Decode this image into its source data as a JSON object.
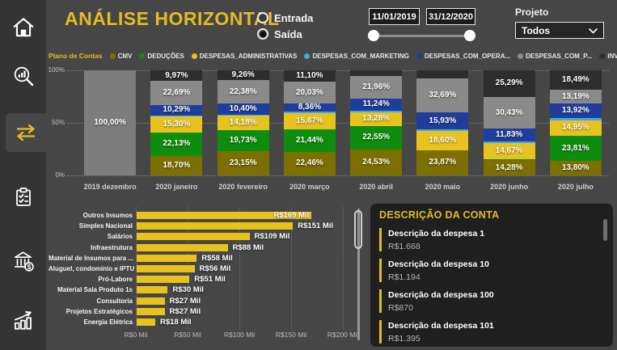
{
  "palette": {
    "cmv": "#7d6e00",
    "deducoes": "#0e8c0e",
    "desp_adm": "#e8c31e",
    "desp_mkt": "#3fa9e0",
    "desp_opera": "#1f3d9b",
    "desp_p": "#8a8a8a",
    "investimentos": "#2d2d2d",
    "total": "#7d7d7d",
    "accent": "#e2bd25",
    "bar_yellow": "#e8c31e"
  },
  "sidebar": {
    "items": [
      {
        "icon": "home-icon",
        "active": false
      },
      {
        "icon": "search-analytics-icon",
        "active": false
      },
      {
        "icon": "horizontal-arrows-icon",
        "active": true
      },
      {
        "icon": "checklist-icon",
        "active": false
      },
      {
        "icon": "bank-money-icon",
        "active": false
      },
      {
        "icon": "growth-chart-icon",
        "active": false
      }
    ]
  },
  "header": {
    "title": "ANÁLISE HORIZONTAL",
    "radios": [
      {
        "label": "Entrada",
        "selected": false
      },
      {
        "label": "Saída",
        "selected": true
      }
    ],
    "date_from": "11/01/2019",
    "date_to": "31/12/2020",
    "project_label": "Projeto",
    "project_value": "Todos"
  },
  "legend": {
    "label": "Plano de Contas",
    "items": [
      {
        "label": "CMV",
        "key": "cmv"
      },
      {
        "label": "DEDUÇÕES",
        "key": "deducoes"
      },
      {
        "label": "DESPESAS_ADMINISTRATIVAS",
        "key": "desp_adm"
      },
      {
        "label": "DESPESAS_COM_MARKETING",
        "key": "desp_mkt"
      },
      {
        "label": "DESPESAS_COM_OPERA...",
        "key": "desp_opera"
      },
      {
        "label": "DESPESAS_COM_P...",
        "key": "desp_p"
      },
      {
        "label": "INVESTIMENTOS",
        "key": "investimentos"
      }
    ]
  },
  "chart_data": [
    {
      "type": "bar",
      "variant": "100%-stacked-column",
      "yticks": [
        "100%",
        "50%",
        "0%"
      ],
      "ylim": [
        0,
        100
      ],
      "grid": "dotted-horizontal",
      "columns": [
        {
          "category": "2019 dezembro",
          "segments": [
            {
              "k": "total",
              "v": 100,
              "label": "100,00%"
            }
          ]
        },
        {
          "category": "2020 janeiro",
          "segments": [
            {
              "k": "cmv",
              "v": 18.7,
              "label": "18,70%"
            },
            {
              "k": "deducoes",
              "v": 22.13,
              "label": "22,13%"
            },
            {
              "k": "desp_adm",
              "v": 15.3,
              "label": "15,30%"
            },
            {
              "k": "desp_mkt",
              "v": 0.92,
              "label": ""
            },
            {
              "k": "desp_opera",
              "v": 10.29,
              "label": "10,29%"
            },
            {
              "k": "desp_p",
              "v": 22.69,
              "label": "22,69%"
            },
            {
              "k": "investimentos",
              "v": 9.97,
              "label": "9,97%"
            }
          ]
        },
        {
          "category": "2020 fevereiro",
          "segments": [
            {
              "k": "cmv",
              "v": 23.15,
              "label": "23,15%"
            },
            {
              "k": "deducoes",
              "v": 19.73,
              "label": "19,73%"
            },
            {
              "k": "desp_adm",
              "v": 14.18,
              "label": "14,18%"
            },
            {
              "k": "desp_mkt",
              "v": 0.9,
              "label": ""
            },
            {
              "k": "desp_opera",
              "v": 10.4,
              "label": "10,40%"
            },
            {
              "k": "desp_p",
              "v": 22.38,
              "label": "22,38%"
            },
            {
              "k": "investimentos",
              "v": 9.26,
              "label": "9,26%"
            }
          ]
        },
        {
          "category": "2020 março",
          "segments": [
            {
              "k": "cmv",
              "v": 22.46,
              "label": "22,46%"
            },
            {
              "k": "deducoes",
              "v": 21.44,
              "label": "21,44%"
            },
            {
              "k": "desp_adm",
              "v": 15.67,
              "label": "15,67%"
            },
            {
              "k": "desp_mkt",
              "v": 0.94,
              "label": ""
            },
            {
              "k": "desp_opera",
              "v": 8.36,
              "label": "8,36%"
            },
            {
              "k": "desp_p",
              "v": 20.03,
              "label": "20,03%"
            },
            {
              "k": "investimentos",
              "v": 11.1,
              "label": "11,10%"
            }
          ]
        },
        {
          "category": "2020 abril",
          "segments": [
            {
              "k": "cmv",
              "v": 24.53,
              "label": "24,53%"
            },
            {
              "k": "deducoes",
              "v": 22.55,
              "label": "22,55%"
            },
            {
              "k": "desp_adm",
              "v": 13.28,
              "label": "13,28%"
            },
            {
              "k": "desp_mkt",
              "v": 1.44,
              "label": ""
            },
            {
              "k": "desp_opera",
              "v": 11.24,
              "label": "11,24%"
            },
            {
              "k": "desp_p",
              "v": 21.96,
              "label": "21,96%"
            },
            {
              "k": "investimentos",
              "v": 5.0,
              "label": ""
            }
          ]
        },
        {
          "category": "2020 maio",
          "segments": [
            {
              "k": "cmv",
              "v": 23.87,
              "label": "23,87%"
            },
            {
              "k": "desp_adm",
              "v": 18.6,
              "label": "18,60%"
            },
            {
              "k": "desp_mkt",
              "v": 1.41,
              "label": ""
            },
            {
              "k": "desp_opera",
              "v": 15.93,
              "label": "15,93%"
            },
            {
              "k": "desp_p",
              "v": 32.69,
              "label": "32,69%"
            },
            {
              "k": "investimentos",
              "v": 7.5,
              "label": ""
            }
          ]
        },
        {
          "category": "2020 junho",
          "segments": [
            {
              "k": "cmv",
              "v": 14.28,
              "label": "14,28%"
            },
            {
              "k": "deducoes",
              "v": 1.5,
              "label": ""
            },
            {
              "k": "desp_adm",
              "v": 14.67,
              "label": "14,67%"
            },
            {
              "k": "desp_mkt",
              "v": 2.0,
              "label": ""
            },
            {
              "k": "desp_opera",
              "v": 11.83,
              "label": "11,83%"
            },
            {
              "k": "desp_p",
              "v": 30.43,
              "label": "30,43%"
            },
            {
              "k": "investimentos",
              "v": 25.29,
              "label": "25,29%"
            }
          ]
        },
        {
          "category": "2020 julho",
          "segments": [
            {
              "k": "cmv",
              "v": 13.8,
              "label": "13,80%"
            },
            {
              "k": "deducoes",
              "v": 23.81,
              "label": "23,81%"
            },
            {
              "k": "desp_adm",
              "v": 14.95,
              "label": "14,95%"
            },
            {
              "k": "desp_mkt",
              "v": 1.84,
              "label": ""
            },
            {
              "k": "desp_opera",
              "v": 13.92,
              "label": "13,92%"
            },
            {
              "k": "desp_p",
              "v": 13.19,
              "label": "13,19%"
            },
            {
              "k": "investimentos",
              "v": 18.49,
              "label": "18,49%"
            }
          ]
        }
      ]
    },
    {
      "type": "bar",
      "variant": "horizontal",
      "categories": [
        "Outros Insumos",
        "Simples Nacional",
        "Salários",
        "Infraestrutura",
        "Material de Insumos para ...",
        "Aluguel, condomínio e IPTU",
        "Pró-Labore",
        "Material Sala Produto 1s",
        "Consultoria",
        "Projetos Estratégicos",
        "Energia Elétrica"
      ],
      "values": [
        169,
        151,
        109,
        88,
        58,
        56,
        51,
        30,
        27,
        27,
        18
      ],
      "labels": [
        "R$169 Mil",
        "R$151 Mil",
        "R$109 Mil",
        "R$88 Mil",
        "R$58 Mil",
        "R$56 Mil",
        "R$51 Mil",
        "R$30 Mil",
        "R$27 Mil",
        "R$27 Mil",
        "R$18 Mil"
      ],
      "xticks": [
        "R$0 Mil",
        "R$50 Mil",
        "R$100 Mil",
        "R$150 Mil",
        "R$200 Mil"
      ],
      "xlim": [
        0,
        210
      ],
      "grid": "dotted-vertical"
    }
  ],
  "account_panel": {
    "title": "DESCRIÇÃO DA CONTA",
    "items": [
      {
        "name": "Descrição da despesa 1",
        "value": "R$1.668"
      },
      {
        "name": "Descrição da despesa 10",
        "value": "R$1.194"
      },
      {
        "name": "Descrição da despesa 100",
        "value": "R$870"
      },
      {
        "name": "Descrição da despesa 101",
        "value": "R$1.395"
      }
    ]
  }
}
